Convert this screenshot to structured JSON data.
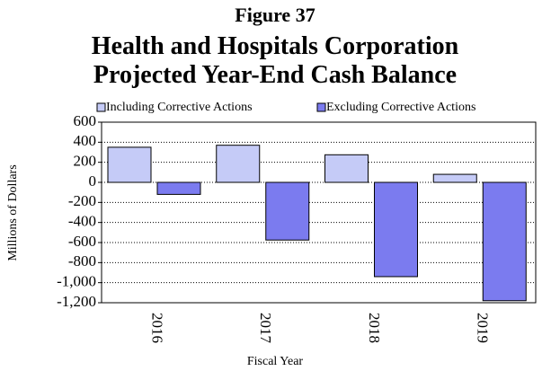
{
  "chart_data": {
    "type": "bar",
    "title": [
      "Figure 37",
      "Health and Hospitals Corporation",
      "Projected Year-End Cash Balance"
    ],
    "x_label": "Fiscal Year",
    "y_label": "Millions of Dollars",
    "categories": [
      "2016",
      "2017",
      "2018",
      "2019"
    ],
    "series": [
      {
        "name": "Including Corrective Actions",
        "color": "#c5cbf7",
        "values": [
          350,
          370,
          275,
          80
        ]
      },
      {
        "name": "Excluding Corrective Actions",
        "color": "#7b7bef",
        "values": [
          -120,
          -575,
          -940,
          -1180
        ]
      }
    ],
    "ylim": [
      -1200,
      600
    ],
    "yticks": [
      {
        "value": -1200,
        "label": "-1,200"
      },
      {
        "value": -1000,
        "label": "-1,000"
      },
      -800,
      -600,
      -400,
      -200,
      0,
      200,
      400,
      600
    ],
    "grid": true,
    "legend": "top"
  }
}
